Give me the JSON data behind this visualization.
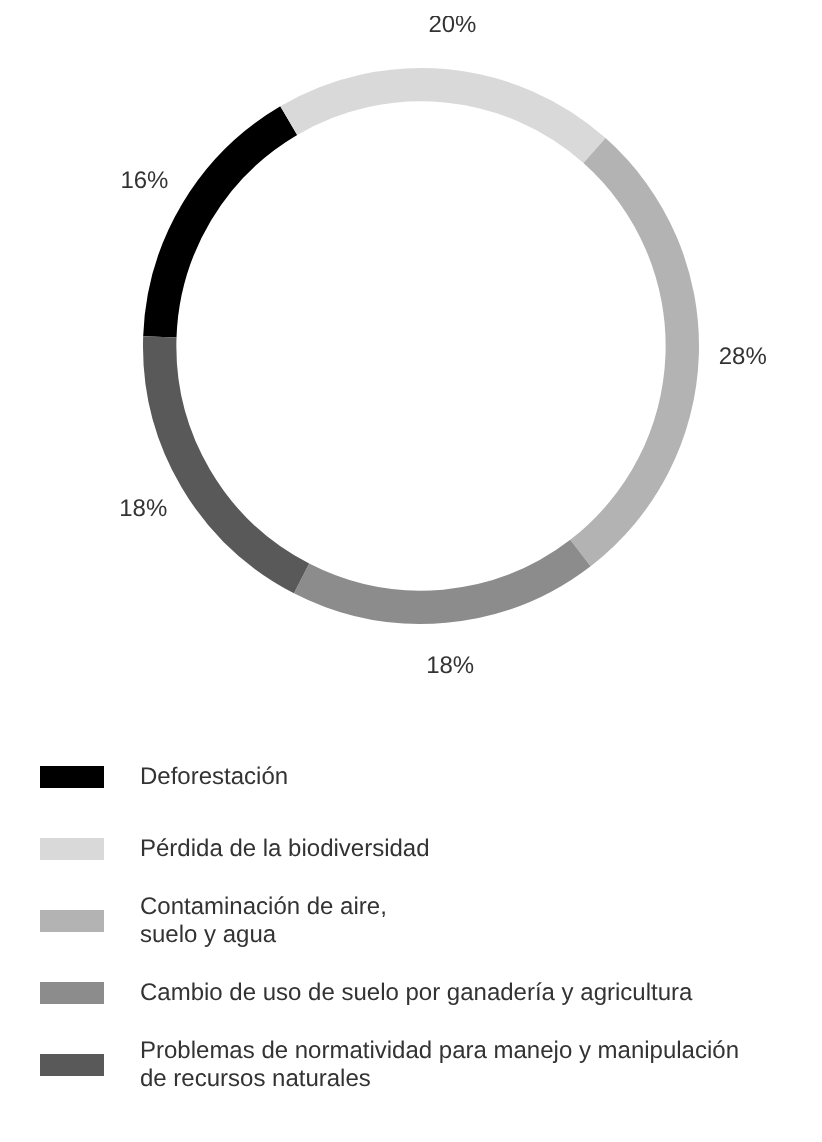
{
  "chart_data": {
    "type": "donut",
    "categories": [
      "Deforestación",
      "Pérdida de la biodiversidad",
      "Contaminación de aire,\nsuelo y agua",
      "Cambio de uso de suelo por ganadería y agricultura",
      "Problemas de normatividad para manejo y manipulación\nde recursos naturales"
    ],
    "values": [
      16,
      20,
      28,
      18,
      18
    ],
    "colors": [
      "#000000",
      "#d9d9d9",
      "#b3b3b3",
      "#8c8c8c",
      "#595959"
    ],
    "value_labels": [
      "16%",
      "20%",
      "28%",
      "18%",
      "18%"
    ],
    "legend": "bottom"
  }
}
